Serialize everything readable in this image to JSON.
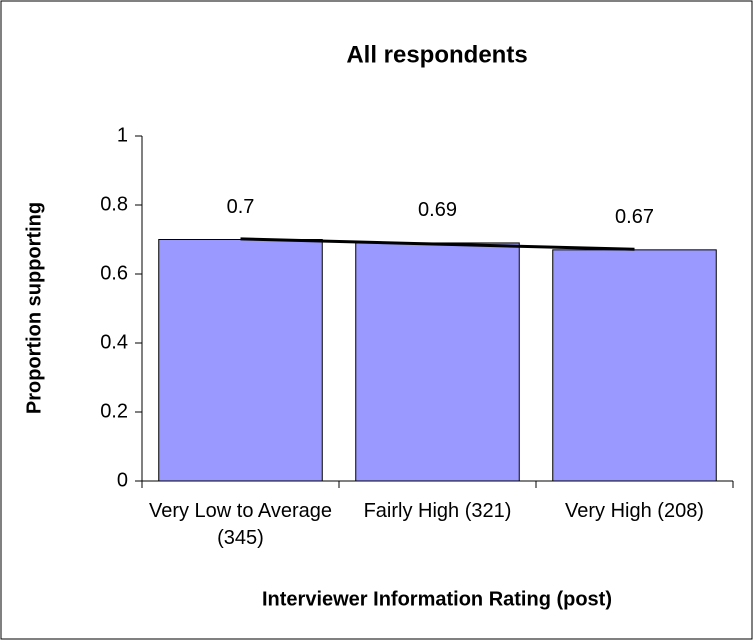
{
  "chart_data": {
    "type": "bar",
    "title": "All respondents",
    "x_label": "Interviewer Information Rating (post)",
    "y_label": "Proportion supporting",
    "categories": [
      "Very Low to Average (345)",
      "Fairly High (321)",
      "Very High (208)"
    ],
    "values": [
      0.7,
      0.69,
      0.67
    ],
    "color": "#9999ff",
    "ylim": [
      0,
      1
    ],
    "yticks": [
      0,
      0.2,
      0.4,
      0.6,
      0.8,
      1
    ],
    "grid": false,
    "trendline": true
  }
}
